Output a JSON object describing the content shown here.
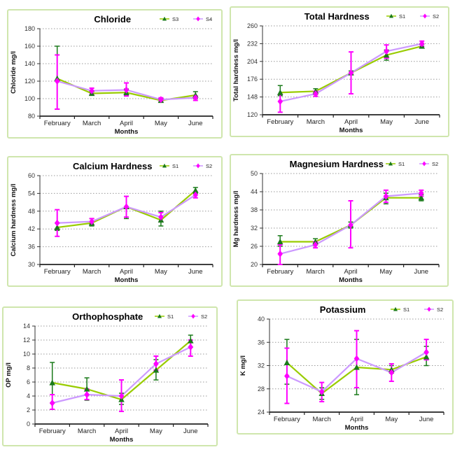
{
  "page": {
    "background": "#ffffff",
    "panel_border_color": "#cfe6ad"
  },
  "colors": {
    "series_green_line": "#99cc00",
    "series_green_marker": "#1a7a1a",
    "series_magenta_line": "#cc99ff",
    "series_magenta_marker": "#ff00ff",
    "gridline": "#999999",
    "axis": "#222222"
  },
  "chart_data": [
    {
      "id": "chloride",
      "type": "line",
      "title": "Chloride",
      "xlabel": "Months",
      "ylabel": "Chloride mg/l",
      "categories": [
        "February",
        "March",
        "April",
        "May",
        "June"
      ],
      "ylim": [
        80,
        180
      ],
      "yticks": [
        80,
        100,
        120,
        140,
        160,
        180
      ],
      "grid": true,
      "legend_position": "top-right",
      "series": [
        {
          "name": "S3",
          "line_color": "#99cc00",
          "marker": "triangle",
          "marker_color": "#1a7a1a",
          "values": [
            123,
            106,
            107,
            98,
            104
          ],
          "err_low": [
            88,
            104,
            104,
            96,
            100
          ],
          "err_high": [
            160,
            108,
            111,
            100,
            108
          ]
        },
        {
          "name": "S4",
          "line_color": "#cc99ff",
          "marker": "diamond",
          "marker_color": "#ff00ff",
          "values": [
            120,
            109,
            110,
            99,
            101
          ],
          "err_low": [
            88,
            105,
            103,
            97,
            98
          ],
          "err_high": [
            150,
            112,
            118,
            101,
            103
          ]
        }
      ]
    },
    {
      "id": "total",
      "type": "line",
      "title": "Total Hardness",
      "xlabel": "Months",
      "ylabel": "Total hardness mg/l",
      "categories": [
        "February",
        "March",
        "April",
        "May",
        "June"
      ],
      "ylim": [
        120,
        260
      ],
      "yticks": [
        120,
        148,
        176,
        204,
        232,
        260
      ],
      "grid": true,
      "legend_position": "top-right",
      "series": [
        {
          "name": "S1",
          "line_color": "#99cc00",
          "marker": "triangle",
          "marker_color": "#1a7a1a",
          "values": [
            155,
            157,
            186,
            214,
            228
          ],
          "err_low": [
            150,
            152,
            183,
            206,
            225
          ],
          "err_high": [
            166,
            161,
            189,
            222,
            231
          ]
        },
        {
          "name": "S2",
          "line_color": "#cc99ff",
          "marker": "diamond",
          "marker_color": "#ff00ff",
          "values": [
            141,
            153,
            186,
            220,
            232
          ],
          "err_low": [
            124,
            149,
            153,
            209,
            228
          ],
          "err_high": [
            152,
            157,
            219,
            230,
            236
          ]
        }
      ]
    },
    {
      "id": "calcium",
      "type": "line",
      "title": "Calcium Hardness",
      "xlabel": "Months",
      "ylabel": "Calcium hardness mg/l",
      "categories": [
        "February",
        "March",
        "April",
        "May",
        "June"
      ],
      "ylim": [
        30,
        60
      ],
      "yticks": [
        30,
        36,
        42,
        48,
        54,
        60
      ],
      "grid": true,
      "legend_position": "top-right",
      "series": [
        {
          "name": "S1",
          "line_color": "#99cc00",
          "marker": "triangle",
          "marker_color": "#1a7a1a",
          "values": [
            42.5,
            44,
            49.5,
            45,
            55
          ],
          "err_low": [
            41.5,
            43,
            45.5,
            43,
            54
          ],
          "err_high": [
            44,
            45.5,
            53,
            48,
            56
          ]
        },
        {
          "name": "S2",
          "line_color": "#cc99ff",
          "marker": "diamond",
          "marker_color": "#ff00ff",
          "values": [
            44,
            44.5,
            49.5,
            46,
            53.5
          ],
          "err_low": [
            39.5,
            43.5,
            46,
            44.5,
            52.5
          ],
          "err_high": [
            48.5,
            45.5,
            53,
            47.5,
            54.5
          ]
        }
      ]
    },
    {
      "id": "magnesium",
      "type": "line",
      "title": "Magnesium Hardness",
      "xlabel": "Months",
      "ylabel": "Mg hardness mg/l",
      "categories": [
        "February",
        "March",
        "April",
        "May",
        "June"
      ],
      "ylim": [
        20,
        50
      ],
      "yticks": [
        20,
        26,
        32,
        38,
        44,
        50
      ],
      "grid": true,
      "legend_position": "top-right",
      "series": [
        {
          "name": "S1",
          "line_color": "#99cc00",
          "marker": "triangle",
          "marker_color": "#1a7a1a",
          "values": [
            27.5,
            27.5,
            33,
            42,
            42
          ],
          "err_low": [
            26,
            26.5,
            32,
            40,
            41
          ],
          "err_high": [
            29.5,
            28.5,
            34,
            43.5,
            43
          ]
        },
        {
          "name": "S2",
          "line_color": "#cc99ff",
          "marker": "diamond",
          "marker_color": "#ff00ff",
          "values": [
            23.5,
            26.5,
            33,
            42.5,
            43.5
          ],
          "err_low": [
            20,
            25.5,
            25.5,
            40.5,
            42.5
          ],
          "err_high": [
            26.5,
            27.5,
            41,
            44.5,
            44.5
          ]
        }
      ]
    },
    {
      "id": "op",
      "type": "line",
      "title": "Orthophosphate",
      "xlabel": "Months",
      "ylabel": "OP mg/l",
      "categories": [
        "February",
        "March",
        "April",
        "May",
        "June"
      ],
      "ylim": [
        0,
        14
      ],
      "yticks": [
        0,
        2,
        4,
        6,
        8,
        10,
        12,
        14
      ],
      "grid": true,
      "legend_position": "top-right",
      "series": [
        {
          "name": "S1",
          "line_color": "#99cc00",
          "marker": "triangle",
          "marker_color": "#1a7a1a",
          "values": [
            5.9,
            5.0,
            3.5,
            7.7,
            11.9
          ],
          "err_low": [
            3.0,
            3.4,
            2.8,
            6.3,
            11.0
          ],
          "err_high": [
            8.8,
            6.6,
            4.4,
            9.2,
            12.7
          ]
        },
        {
          "name": "S2",
          "line_color": "#cc99ff",
          "marker": "diamond",
          "marker_color": "#ff00ff",
          "values": [
            3.0,
            4.2,
            4.0,
            8.6,
            11.0
          ],
          "err_low": [
            2.1,
            3.5,
            1.8,
            7.7,
            9.7
          ],
          "err_high": [
            4.2,
            5.0,
            6.3,
            9.7,
            12.0
          ]
        }
      ]
    },
    {
      "id": "potassium",
      "type": "line",
      "title": "Potassium",
      "xlabel": "Months",
      "ylabel": "K mg/l",
      "categories": [
        "February",
        "March",
        "April",
        "May",
        "June"
      ],
      "ylim": [
        24,
        40
      ],
      "yticks": [
        24,
        28,
        32,
        36,
        40
      ],
      "grid": true,
      "legend_position": "top-right",
      "series": [
        {
          "name": "S1",
          "line_color": "#99cc00",
          "marker": "triangle",
          "marker_color": "#1a7a1a",
          "values": [
            32.5,
            27.2,
            31.7,
            31.3,
            33.5
          ],
          "err_low": [
            28.8,
            26.2,
            27.0,
            30.7,
            32.0
          ],
          "err_high": [
            36.5,
            28.2,
            36.5,
            32.0,
            35.3
          ]
        },
        {
          "name": "S2",
          "line_color": "#cc99ff",
          "marker": "diamond",
          "marker_color": "#ff00ff",
          "values": [
            30.2,
            27.5,
            33.2,
            30.8,
            34.3
          ],
          "err_low": [
            25.5,
            25.8,
            28.2,
            29.3,
            33.0
          ],
          "err_high": [
            35.0,
            29.1,
            38.0,
            32.3,
            36.5
          ]
        }
      ]
    }
  ]
}
